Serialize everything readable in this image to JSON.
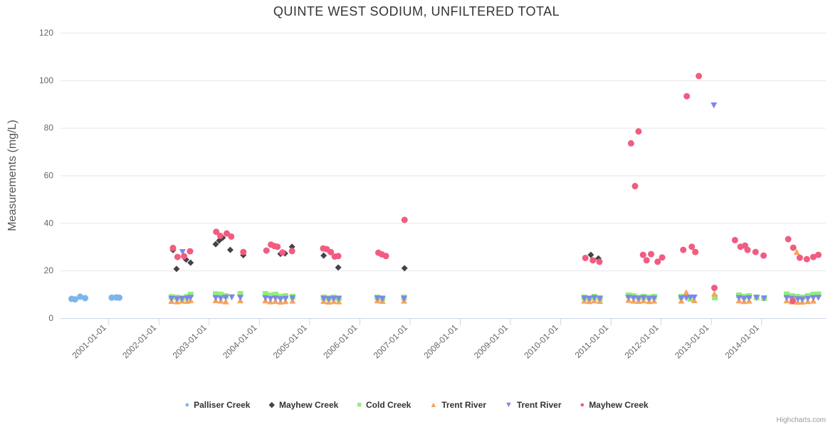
{
  "title": "QUINTE WEST SODIUM, UNFILTERED TOTAL",
  "credits": "Highcharts.com",
  "chart_data": {
    "type": "scatter",
    "title": "QUINTE WEST SODIUM, UNFILTERED TOTAL",
    "xlabel": "",
    "ylabel": "Measurements (mg/L)",
    "ylim": [
      0,
      120
    ],
    "yticks": [
      0,
      20,
      40,
      60,
      80,
      100,
      120
    ],
    "xlim": [
      2000.04,
      2015.28
    ],
    "grid": true,
    "legend_position": "bottom",
    "xticks": [
      {
        "x": 2001,
        "label": "2001-01-01"
      },
      {
        "x": 2002,
        "label": "2002-01-01"
      },
      {
        "x": 2003,
        "label": "2003-01-01"
      },
      {
        "x": 2004,
        "label": "2004-01-01"
      },
      {
        "x": 2005,
        "label": "2005-01-01"
      },
      {
        "x": 2006,
        "label": "2006-01-01"
      },
      {
        "x": 2007,
        "label": "2007-01-01"
      },
      {
        "x": 2008,
        "label": "2008-01-01"
      },
      {
        "x": 2009,
        "label": "2009-01-01"
      },
      {
        "x": 2010,
        "label": "2010-01-01"
      },
      {
        "x": 2011,
        "label": "2011-01-01"
      },
      {
        "x": 2012,
        "label": "2012-01-01"
      },
      {
        "x": 2013,
        "label": "2013-01-01"
      },
      {
        "x": 2014,
        "label": "2014-01-01"
      }
    ],
    "series": [
      {
        "name": "Palliser Creek",
        "marker": "circle",
        "color": "#7cb5ec",
        "points": [
          [
            2000.26,
            8.1
          ],
          [
            2000.33,
            7.9
          ],
          [
            2000.43,
            9.0
          ],
          [
            2000.53,
            8.4
          ],
          [
            2001.06,
            8.6
          ],
          [
            2001.15,
            8.7
          ],
          [
            2001.21,
            8.6
          ]
        ]
      },
      {
        "name": "Mayhew Creek",
        "marker": "diamond",
        "color": "#434348",
        "points": [
          [
            2002.28,
            28.6
          ],
          [
            2002.35,
            20.7
          ],
          [
            2002.54,
            24.6
          ],
          [
            2002.63,
            23.3
          ],
          [
            2003.13,
            31.1
          ],
          [
            2003.2,
            32.6
          ],
          [
            2003.27,
            33.8
          ],
          [
            2003.42,
            28.7
          ],
          [
            2003.68,
            26.5
          ],
          [
            2004.42,
            27.0
          ],
          [
            2004.51,
            27.2
          ],
          [
            2004.65,
            30.0
          ],
          [
            2005.28,
            26.3
          ],
          [
            2005.42,
            27.6
          ],
          [
            2005.57,
            21.3
          ],
          [
            2006.89,
            21.0
          ],
          [
            2010.6,
            26.6
          ],
          [
            2010.75,
            25.1
          ]
        ]
      },
      {
        "name": "Cold Creek",
        "marker": "square",
        "color": "#90ed7d",
        "points": [
          [
            2002.25,
            8.9
          ],
          [
            2002.36,
            8.7
          ],
          [
            2002.46,
            8.4
          ],
          [
            2002.56,
            9.0
          ],
          [
            2002.63,
            9.9
          ],
          [
            2003.13,
            10.1
          ],
          [
            2003.23,
            9.9
          ],
          [
            2003.33,
            9.3
          ],
          [
            2003.62,
            10.2
          ],
          [
            2004.12,
            10.2
          ],
          [
            2004.22,
            9.6
          ],
          [
            2004.32,
            9.9
          ],
          [
            2004.42,
            9.0
          ],
          [
            2004.52,
            9.3
          ],
          [
            2004.66,
            9.0
          ],
          [
            2005.28,
            8.7
          ],
          [
            2005.38,
            8.4
          ],
          [
            2005.48,
            8.7
          ],
          [
            2005.58,
            8.4
          ],
          [
            2006.35,
            8.7
          ],
          [
            2006.45,
            8.4
          ],
          [
            2006.88,
            8.7
          ],
          [
            2010.47,
            8.7
          ],
          [
            2010.57,
            8.4
          ],
          [
            2010.67,
            9.0
          ],
          [
            2010.78,
            8.4
          ],
          [
            2011.35,
            9.6
          ],
          [
            2011.45,
            9.3
          ],
          [
            2011.55,
            8.7
          ],
          [
            2011.65,
            9.0
          ],
          [
            2011.76,
            8.7
          ],
          [
            2011.86,
            9.0
          ],
          [
            2012.4,
            9.0
          ],
          [
            2012.58,
            8.1
          ],
          [
            2013.07,
            8.7
          ],
          [
            2013.55,
            9.6
          ],
          [
            2013.65,
            9.0
          ],
          [
            2013.75,
            9.3
          ],
          [
            2013.9,
            8.7
          ],
          [
            2014.05,
            8.4
          ],
          [
            2014.5,
            10.0
          ],
          [
            2014.6,
            9.3
          ],
          [
            2014.7,
            9.0
          ],
          [
            2014.81,
            8.7
          ],
          [
            2014.92,
            9.3
          ],
          [
            2015.03,
            9.9
          ],
          [
            2015.13,
            10.0
          ]
        ]
      },
      {
        "name": "Trent River",
        "marker": "triangle-up",
        "color": "#f7a35c",
        "points": [
          [
            2002.25,
            7.2
          ],
          [
            2002.36,
            7.0
          ],
          [
            2002.46,
            7.3
          ],
          [
            2002.56,
            7.2
          ],
          [
            2002.63,
            7.5
          ],
          [
            2003.13,
            7.5
          ],
          [
            2003.23,
            7.3
          ],
          [
            2003.33,
            7.0
          ],
          [
            2003.62,
            7.4
          ],
          [
            2004.12,
            7.4
          ],
          [
            2004.22,
            7.0
          ],
          [
            2004.32,
            7.2
          ],
          [
            2004.42,
            6.9
          ],
          [
            2004.52,
            7.1
          ],
          [
            2004.66,
            7.3
          ],
          [
            2005.28,
            7.2
          ],
          [
            2005.38,
            6.9
          ],
          [
            2005.48,
            7.1
          ],
          [
            2005.58,
            7.0
          ],
          [
            2006.35,
            7.4
          ],
          [
            2006.45,
            7.2
          ],
          [
            2006.88,
            7.3
          ],
          [
            2010.47,
            7.3
          ],
          [
            2010.57,
            7.1
          ],
          [
            2010.67,
            7.4
          ],
          [
            2010.78,
            7.2
          ],
          [
            2011.35,
            7.6
          ],
          [
            2011.45,
            7.3
          ],
          [
            2011.55,
            7.2
          ],
          [
            2011.65,
            7.4
          ],
          [
            2011.76,
            7.1
          ],
          [
            2011.86,
            7.3
          ],
          [
            2012.4,
            7.3
          ],
          [
            2012.5,
            10.8
          ],
          [
            2012.66,
            7.5
          ],
          [
            2013.06,
            10.3
          ],
          [
            2013.55,
            7.4
          ],
          [
            2013.65,
            7.1
          ],
          [
            2013.75,
            7.3
          ],
          [
            2014.5,
            7.4
          ],
          [
            2014.6,
            7.0
          ],
          [
            2014.7,
            27.8
          ],
          [
            2014.72,
            6.8
          ],
          [
            2014.81,
            6.9
          ],
          [
            2014.92,
            7.1
          ],
          [
            2015.03,
            7.3
          ]
        ]
      },
      {
        "name": "Trent River",
        "marker": "triangle-down",
        "color": "#8085e9",
        "points": [
          [
            2002.25,
            8.2
          ],
          [
            2002.36,
            8.0
          ],
          [
            2002.47,
            27.8
          ],
          [
            2002.46,
            8.1
          ],
          [
            2002.56,
            8.3
          ],
          [
            2002.63,
            8.6
          ],
          [
            2003.13,
            8.5
          ],
          [
            2003.23,
            8.3
          ],
          [
            2003.33,
            8.6
          ],
          [
            2003.45,
            8.8
          ],
          [
            2003.62,
            8.6
          ],
          [
            2004.12,
            8.4
          ],
          [
            2004.22,
            8.1
          ],
          [
            2004.32,
            8.3
          ],
          [
            2004.42,
            8.0
          ],
          [
            2004.52,
            8.2
          ],
          [
            2004.66,
            8.4
          ],
          [
            2005.28,
            8.2
          ],
          [
            2005.38,
            8.0
          ],
          [
            2005.48,
            8.2
          ],
          [
            2005.58,
            8.1
          ],
          [
            2006.35,
            8.3
          ],
          [
            2006.45,
            8.1
          ],
          [
            2006.88,
            8.2
          ],
          [
            2010.47,
            8.3
          ],
          [
            2010.57,
            8.1
          ],
          [
            2010.67,
            8.5
          ],
          [
            2010.78,
            8.2
          ],
          [
            2011.35,
            8.6
          ],
          [
            2011.45,
            8.4
          ],
          [
            2011.55,
            8.2
          ],
          [
            2011.65,
            8.5
          ],
          [
            2011.76,
            8.1
          ],
          [
            2011.86,
            8.3
          ],
          [
            2012.4,
            8.4
          ],
          [
            2012.5,
            8.5
          ],
          [
            2012.58,
            8.7
          ],
          [
            2012.66,
            8.7
          ],
          [
            2013.05,
            89.5
          ],
          [
            2013.55,
            8.5
          ],
          [
            2013.65,
            8.2
          ],
          [
            2013.75,
            8.4
          ],
          [
            2013.9,
            8.6
          ],
          [
            2014.05,
            8.3
          ],
          [
            2014.5,
            8.5
          ],
          [
            2014.6,
            8.2
          ],
          [
            2014.72,
            8.0
          ],
          [
            2014.81,
            7.9
          ],
          [
            2014.92,
            8.2
          ],
          [
            2015.03,
            8.5
          ],
          [
            2015.13,
            8.6
          ]
        ]
      },
      {
        "name": "Mayhew Creek",
        "marker": "circle",
        "color": "#f15c80",
        "points": [
          [
            2002.28,
            29.5
          ],
          [
            2002.37,
            25.7
          ],
          [
            2002.5,
            26.0
          ],
          [
            2002.62,
            28.1
          ],
          [
            2003.14,
            36.3
          ],
          [
            2003.22,
            34.6
          ],
          [
            2003.35,
            35.6
          ],
          [
            2003.44,
            34.3
          ],
          [
            2003.68,
            27.8
          ],
          [
            2004.14,
            28.4
          ],
          [
            2004.23,
            30.9
          ],
          [
            2004.3,
            30.3
          ],
          [
            2004.36,
            30.0
          ],
          [
            2004.46,
            27.6
          ],
          [
            2004.65,
            28.2
          ],
          [
            2005.27,
            29.3
          ],
          [
            2005.34,
            29.0
          ],
          [
            2005.42,
            27.8
          ],
          [
            2005.5,
            25.9
          ],
          [
            2005.57,
            26.1
          ],
          [
            2006.37,
            27.5
          ],
          [
            2006.44,
            26.8
          ],
          [
            2006.52,
            26.1
          ],
          [
            2006.89,
            41.3
          ],
          [
            2010.49,
            25.3
          ],
          [
            2010.64,
            24.3
          ],
          [
            2010.77,
            23.7
          ],
          [
            2011.4,
            73.5
          ],
          [
            2011.48,
            55.5
          ],
          [
            2011.55,
            78.5
          ],
          [
            2011.64,
            26.6
          ],
          [
            2011.71,
            24.3
          ],
          [
            2011.8,
            26.9
          ],
          [
            2011.93,
            23.7
          ],
          [
            2012.02,
            25.5
          ],
          [
            2012.44,
            28.7
          ],
          [
            2012.51,
            93.3
          ],
          [
            2012.61,
            30.0
          ],
          [
            2012.68,
            27.8
          ],
          [
            2012.75,
            101.8
          ],
          [
            2013.06,
            12.7
          ],
          [
            2013.47,
            32.8
          ],
          [
            2013.58,
            30.0
          ],
          [
            2013.67,
            30.5
          ],
          [
            2013.72,
            28.7
          ],
          [
            2013.88,
            27.8
          ],
          [
            2014.04,
            26.3
          ],
          [
            2014.53,
            33.2
          ],
          [
            2014.62,
            7.2
          ],
          [
            2014.63,
            29.6
          ],
          [
            2014.76,
            25.4
          ],
          [
            2014.9,
            24.8
          ],
          [
            2015.03,
            25.7
          ],
          [
            2015.13,
            26.6
          ]
        ]
      }
    ]
  }
}
